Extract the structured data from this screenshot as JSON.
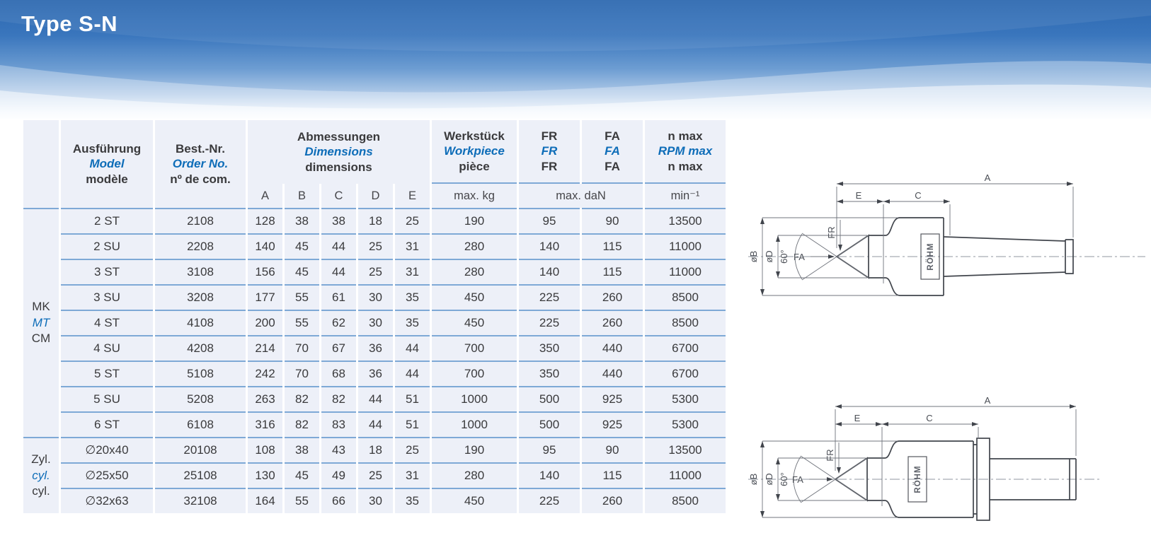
{
  "page": {
    "title": "Type S-N"
  },
  "colors": {
    "accent_blue": "#0e6db8",
    "row_line": "#7ea9d6",
    "cell_bg": "#edf0f8",
    "hero_blue": "#2b67af",
    "drawing_line": "#41454c"
  },
  "table": {
    "header": {
      "model": {
        "de": "Ausführung",
        "en": "Model",
        "fr": "modèle"
      },
      "order": {
        "de": "Best.-Nr.",
        "en": "Order No.",
        "fr": "nº de com."
      },
      "dimensions": {
        "de": "Abmessungen",
        "en": "Dimensions",
        "fr": "dimensions"
      },
      "workpiece": {
        "de": "Werkstück",
        "en": "Workpiece",
        "fr": "pièce"
      },
      "radial_force": {
        "de": "FR",
        "en": "FR",
        "fr": "FR"
      },
      "axial_force": {
        "de": "FA",
        "en": "FA",
        "fr": "FA"
      },
      "speed": {
        "de": "n max",
        "en": "RPM max",
        "fr": "n max"
      }
    },
    "subheader": {
      "dims": [
        "A",
        "B",
        "C",
        "D",
        "E"
      ],
      "workpiece_unit": "max. kg",
      "force_unit": "max. daN",
      "speed_unit": "min⁻¹"
    },
    "groups": [
      {
        "label": {
          "de": "MK",
          "en": "MT",
          "fr": "CM"
        },
        "rows": [
          {
            "model": "2 ST",
            "order": "2108",
            "dims": [
              128,
              38,
              38,
              18,
              25
            ],
            "workpiece_kg": 190,
            "fr_daN": 95,
            "fa_daN": 90,
            "n_max": 13500
          },
          {
            "model": "2 SU",
            "order": "2208",
            "dims": [
              140,
              45,
              44,
              25,
              31
            ],
            "workpiece_kg": 280,
            "fr_daN": 140,
            "fa_daN": 115,
            "n_max": 11000
          },
          {
            "model": "3 ST",
            "order": "3108",
            "dims": [
              156,
              45,
              44,
              25,
              31
            ],
            "workpiece_kg": 280,
            "fr_daN": 140,
            "fa_daN": 115,
            "n_max": 11000
          },
          {
            "model": "3 SU",
            "order": "3208",
            "dims": [
              177,
              55,
              61,
              30,
              35
            ],
            "workpiece_kg": 450,
            "fr_daN": 225,
            "fa_daN": 260,
            "n_max": 8500
          },
          {
            "model": "4 ST",
            "order": "4108",
            "dims": [
              200,
              55,
              62,
              30,
              35
            ],
            "workpiece_kg": 450,
            "fr_daN": 225,
            "fa_daN": 260,
            "n_max": 8500
          },
          {
            "model": "4 SU",
            "order": "4208",
            "dims": [
              214,
              70,
              67,
              36,
              44
            ],
            "workpiece_kg": 700,
            "fr_daN": 350,
            "fa_daN": 440,
            "n_max": 6700
          },
          {
            "model": "5 ST",
            "order": "5108",
            "dims": [
              242,
              70,
              68,
              36,
              44
            ],
            "workpiece_kg": 700,
            "fr_daN": 350,
            "fa_daN": 440,
            "n_max": 6700
          },
          {
            "model": "5 SU",
            "order": "5208",
            "dims": [
              263,
              82,
              82,
              44,
              51
            ],
            "workpiece_kg": 1000,
            "fr_daN": 500,
            "fa_daN": 925,
            "n_max": 5300
          },
          {
            "model": "6 ST",
            "order": "6108",
            "dims": [
              316,
              82,
              83,
              44,
              51
            ],
            "workpiece_kg": 1000,
            "fr_daN": 500,
            "fa_daN": 925,
            "n_max": 5300
          }
        ]
      },
      {
        "label": {
          "de": "Zyl.",
          "en": "cyl.",
          "fr": "cyl."
        },
        "rows": [
          {
            "model": "∅20x40",
            "order": "20108",
            "dims": [
              108,
              38,
              43,
              18,
              25
            ],
            "workpiece_kg": 190,
            "fr_daN": 95,
            "fa_daN": 90,
            "n_max": 13500
          },
          {
            "model": "∅25x50",
            "order": "25108",
            "dims": [
              130,
              45,
              49,
              25,
              31
            ],
            "workpiece_kg": 280,
            "fr_daN": 140,
            "fa_daN": 115,
            "n_max": 11000
          },
          {
            "model": "∅32x63",
            "order": "32108",
            "dims": [
              164,
              55,
              66,
              30,
              35
            ],
            "workpiece_kg": 450,
            "fr_daN": 225,
            "fa_daN": 260,
            "n_max": 8500
          }
        ]
      }
    ]
  },
  "drawings": {
    "labels": {
      "overall_length": "A",
      "point_length": "E",
      "body_length": "C",
      "radial_force": "FR",
      "axial_force": "FA",
      "point_angle": "60°",
      "body_dia": "øB",
      "point_dia": "øD",
      "logo": "RÖHM"
    }
  }
}
